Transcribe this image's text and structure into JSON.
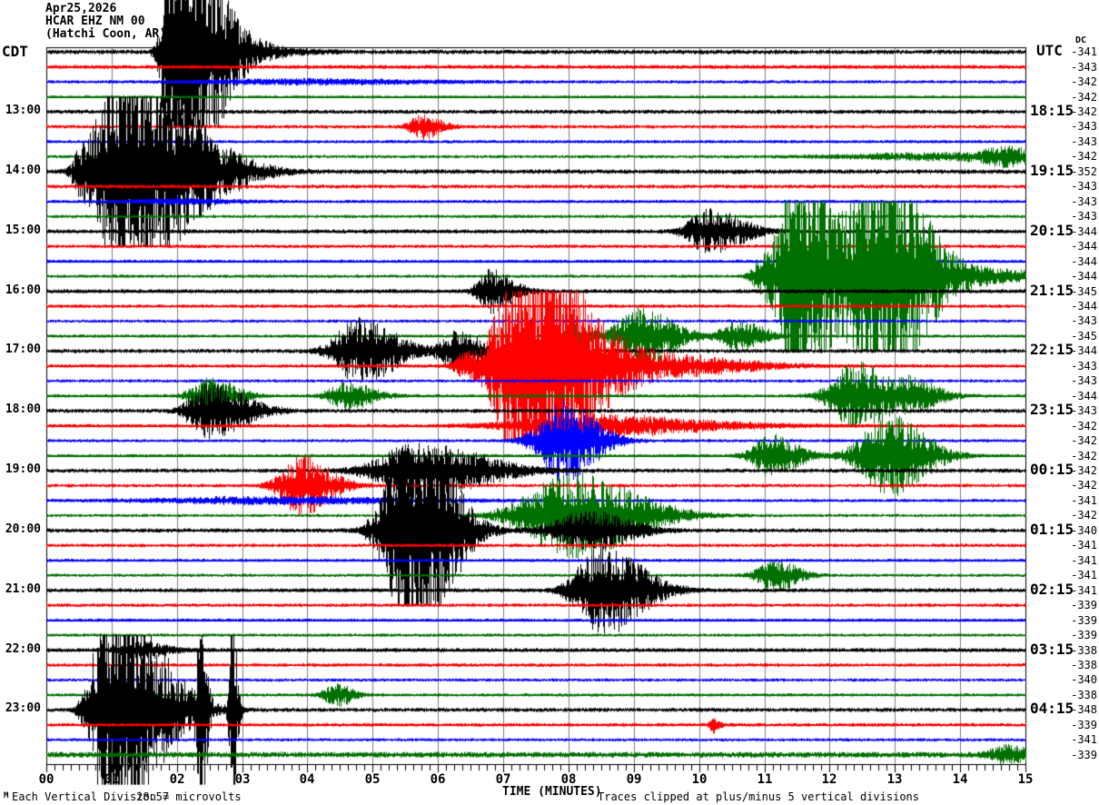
{
  "title": {
    "date": "Apr25,2026",
    "station": "HCAR EHZ NM 00",
    "location": "(Hatchi Coon, AR)"
  },
  "left_axis": {
    "header": "CDT",
    "labels": [
      "13:00",
      "14:00",
      "15:00",
      "16:00",
      "17:00",
      "18:00",
      "19:00",
      "20:00",
      "21:00",
      "22:00",
      "23:00"
    ]
  },
  "right_axis": {
    "header": "UTC",
    "labels": [
      "18:15",
      "19:15",
      "20:15",
      "21:15",
      "22:15",
      "23:15",
      "00:15",
      "01:15",
      "02:15",
      "03:15",
      "04:15"
    ]
  },
  "dc_column": {
    "header": "DC",
    "values": [
      -341,
      -343,
      -342,
      -342,
      -342,
      -343,
      -343,
      -342,
      -352,
      -343,
      -343,
      -343,
      -344,
      -344,
      -344,
      -344,
      -345,
      -344,
      -343,
      -345,
      -344,
      -343,
      -343,
      -344,
      -343,
      -342,
      -342,
      -342,
      -342,
      -342,
      -341,
      -342,
      -340,
      -341,
      -341,
      -341,
      -341,
      -339,
      -339,
      -339,
      -338,
      -338,
      -340,
      -338,
      -348,
      -339,
      -341,
      -339
    ]
  },
  "x_axis": {
    "label": "TIME (MINUTES)",
    "ticks": [
      "00",
      "01",
      "02",
      "03",
      "04",
      "05",
      "06",
      "07",
      "08",
      "09",
      "10",
      "11",
      "12",
      "13",
      "14",
      "15"
    ]
  },
  "footer": {
    "scale_label": "Each Vertical Division =",
    "scale_value": "28.57 microvolts",
    "clip_note": "Traces clipped at plus/minus 5 vertical divisions",
    "watermark": "M"
  },
  "colors": {
    "background": "#ffffff",
    "frame": "#000000",
    "grid": "#808080",
    "trace_colors": {
      "black": "#000000",
      "red": "#ff0000",
      "blue": "#0000ff",
      "green": "#007000"
    }
  },
  "chart_data": {
    "type": "line",
    "subtype": "helicorder-seismogram",
    "minutes_per_row": 15,
    "rows_total": 48,
    "first_row_start_cdt": "12:00",
    "clip_divisions": 5,
    "microvolts_per_division": 28.57,
    "x_range_minutes": [
      0,
      15
    ],
    "rows": [
      {
        "cdt": "12:00",
        "color": "black",
        "dc": -341,
        "noise": 2.5,
        "events": [
          {
            "t": 1.95,
            "wl": 0.12,
            "wr": 0.5,
            "a": 200
          },
          {
            "t": 2.75,
            "wl": 0.3,
            "wr": 0.7,
            "a": 10
          }
        ]
      },
      {
        "cdt": "12:15",
        "color": "red",
        "dc": -343,
        "noise": 2.2,
        "events": []
      },
      {
        "cdt": "12:30",
        "color": "blue",
        "dc": -342,
        "noise": 1.8,
        "events": [
          {
            "t": 4.0,
            "wl": 1.2,
            "wr": 1.5,
            "a": 3
          }
        ]
      },
      {
        "cdt": "12:45",
        "color": "green",
        "dc": -342,
        "noise": 1.5,
        "events": []
      },
      {
        "cdt": "13:00",
        "color": "black",
        "dc": -342,
        "noise": 2.3,
        "events": []
      },
      {
        "cdt": "13:15",
        "color": "red",
        "dc": -343,
        "noise": 2.0,
        "events": [
          {
            "t": 5.75,
            "wl": 0.15,
            "wr": 0.25,
            "a": 13
          }
        ]
      },
      {
        "cdt": "13:30",
        "color": "blue",
        "dc": -343,
        "noise": 1.8,
        "events": []
      },
      {
        "cdt": "13:45",
        "color": "green",
        "dc": -342,
        "noise": 1.8,
        "events": [
          {
            "t": 13.8,
            "wl": 1.2,
            "wr": 1.0,
            "a": 4
          },
          {
            "t": 14.75,
            "wl": 0.3,
            "wr": 0.3,
            "a": 9
          }
        ]
      },
      {
        "cdt": "14:00",
        "color": "black",
        "dc": -352,
        "noise": 2.5,
        "events": [
          {
            "t": 0.55,
            "wl": 0.12,
            "wr": 0.15,
            "a": 25
          },
          {
            "t": 1.05,
            "wl": 0.22,
            "wr": 0.9,
            "a": 120
          },
          {
            "t": 2.1,
            "wl": 0.3,
            "wr": 0.7,
            "a": 15
          }
        ]
      },
      {
        "cdt": "14:15",
        "color": "red",
        "dc": -343,
        "noise": 2.2,
        "events": []
      },
      {
        "cdt": "14:30",
        "color": "blue",
        "dc": -343,
        "noise": 1.8,
        "events": [
          {
            "t": 2.0,
            "wl": 0.5,
            "wr": 0.7,
            "a": 3
          }
        ]
      },
      {
        "cdt": "14:45",
        "color": "green",
        "dc": -343,
        "noise": 1.8,
        "events": []
      },
      {
        "cdt": "15:00",
        "color": "black",
        "dc": -344,
        "noise": 2.3,
        "events": [
          {
            "t": 10.15,
            "wl": 0.25,
            "wr": 0.45,
            "a": 24
          }
        ]
      },
      {
        "cdt": "15:15",
        "color": "red",
        "dc": -344,
        "noise": 2.0,
        "events": []
      },
      {
        "cdt": "15:30",
        "color": "blue",
        "dc": -344,
        "noise": 1.8,
        "events": []
      },
      {
        "cdt": "15:45",
        "color": "green",
        "dc": -344,
        "noise": 1.8,
        "events": [
          {
            "t": 10.95,
            "wl": 0.12,
            "wr": 0.12,
            "a": 14
          },
          {
            "t": 11.55,
            "wl": 0.25,
            "wr": 0.35,
            "a": 150
          },
          {
            "t": 12.75,
            "wl": 0.35,
            "wr": 0.55,
            "a": 150
          },
          {
            "t": 14.0,
            "wl": 0.9,
            "wr": 1.1,
            "a": 9
          }
        ]
      },
      {
        "cdt": "16:00",
        "color": "black",
        "dc": -345,
        "noise": 2.3,
        "events": [
          {
            "t": 6.8,
            "wl": 0.15,
            "wr": 0.3,
            "a": 24
          }
        ]
      },
      {
        "cdt": "16:15",
        "color": "red",
        "dc": -344,
        "noise": 2.0,
        "events": []
      },
      {
        "cdt": "16:30",
        "color": "blue",
        "dc": -343,
        "noise": 1.8,
        "events": []
      },
      {
        "cdt": "16:45",
        "color": "green",
        "dc": -345,
        "noise": 1.8,
        "events": [
          {
            "t": 8.1,
            "wl": 0.12,
            "wr": 0.18,
            "a": 13
          },
          {
            "t": 9.1,
            "wl": 0.3,
            "wr": 0.45,
            "a": 32
          },
          {
            "t": 10.6,
            "wl": 0.2,
            "wr": 0.35,
            "a": 16
          }
        ]
      },
      {
        "cdt": "17:00",
        "color": "black",
        "dc": -344,
        "noise": 2.3,
        "events": [
          {
            "t": 4.8,
            "wl": 0.3,
            "wr": 0.5,
            "a": 36
          },
          {
            "t": 6.3,
            "wl": 0.2,
            "wr": 0.3,
            "a": 22
          },
          {
            "t": 7.2,
            "wl": 0.15,
            "wr": 0.25,
            "a": 10
          }
        ]
      },
      {
        "cdt": "17:15",
        "color": "red",
        "dc": -343,
        "noise": 2.0,
        "events": [
          {
            "t": 6.4,
            "wl": 0.12,
            "wr": 0.15,
            "a": 12
          },
          {
            "t": 7.35,
            "wl": 0.35,
            "wr": 0.8,
            "a": 150
          },
          {
            "t": 9.6,
            "wl": 0.7,
            "wr": 1.0,
            "a": 11
          }
        ]
      },
      {
        "cdt": "17:30",
        "color": "blue",
        "dc": -343,
        "noise": 1.8,
        "events": []
      },
      {
        "cdt": "17:45",
        "color": "green",
        "dc": -344,
        "noise": 1.8,
        "events": [
          {
            "t": 2.5,
            "wl": 0.22,
            "wr": 0.35,
            "a": 20
          },
          {
            "t": 4.6,
            "wl": 0.22,
            "wr": 0.35,
            "a": 15
          },
          {
            "t": 12.4,
            "wl": 0.3,
            "wr": 0.45,
            "a": 38
          },
          {
            "t": 13.3,
            "wl": 0.2,
            "wr": 0.35,
            "a": 16
          }
        ]
      },
      {
        "cdt": "18:00",
        "color": "black",
        "dc": -343,
        "noise": 2.3,
        "events": [
          {
            "t": 2.5,
            "wl": 0.25,
            "wr": 0.5,
            "a": 30
          }
        ]
      },
      {
        "cdt": "18:15",
        "color": "red",
        "dc": -342,
        "noise": 2.0,
        "events": [
          {
            "t": 8.3,
            "wl": 0.9,
            "wr": 1.5,
            "a": 12
          }
        ]
      },
      {
        "cdt": "18:30",
        "color": "blue",
        "dc": -342,
        "noise": 1.8,
        "events": [
          {
            "t": 7.9,
            "wl": 0.3,
            "wr": 0.45,
            "a": 45
          }
        ]
      },
      {
        "cdt": "18:45",
        "color": "green",
        "dc": -342,
        "noise": 1.8,
        "events": [
          {
            "t": 11.1,
            "wl": 0.22,
            "wr": 0.35,
            "a": 24
          },
          {
            "t": 12.9,
            "wl": 0.35,
            "wr": 0.5,
            "a": 45
          }
        ]
      },
      {
        "cdt": "19:00",
        "color": "black",
        "dc": -342,
        "noise": 2.3,
        "events": [
          {
            "t": 5.7,
            "wl": 0.5,
            "wr": 0.9,
            "a": 30
          }
        ]
      },
      {
        "cdt": "19:15",
        "color": "red",
        "dc": -342,
        "noise": 2.0,
        "events": [
          {
            "t": 3.9,
            "wl": 0.25,
            "wr": 0.4,
            "a": 33
          }
        ]
      },
      {
        "cdt": "19:30",
        "color": "blue",
        "dc": -341,
        "noise": 1.8,
        "events": [
          {
            "t": 3.5,
            "wl": 1.4,
            "wr": 1.8,
            "a": 4
          }
        ]
      },
      {
        "cdt": "19:45",
        "color": "green",
        "dc": -342,
        "noise": 1.8,
        "events": [
          {
            "t": 8.0,
            "wl": 0.55,
            "wr": 0.9,
            "a": 48
          }
        ]
      },
      {
        "cdt": "20:00",
        "color": "black",
        "dc": -340,
        "noise": 2.3,
        "events": [
          {
            "t": 5.6,
            "wl": 0.3,
            "wr": 0.5,
            "a": 140
          },
          {
            "t": 8.3,
            "wl": 0.4,
            "wr": 0.55,
            "a": 22
          }
        ]
      },
      {
        "cdt": "20:15",
        "color": "red",
        "dc": -341,
        "noise": 2.0,
        "events": []
      },
      {
        "cdt": "20:30",
        "color": "blue",
        "dc": -341,
        "noise": 1.8,
        "events": []
      },
      {
        "cdt": "20:45",
        "color": "green",
        "dc": -341,
        "noise": 1.8,
        "events": [
          {
            "t": 11.15,
            "wl": 0.2,
            "wr": 0.3,
            "a": 18
          }
        ]
      },
      {
        "cdt": "21:00",
        "color": "black",
        "dc": -341,
        "noise": 2.3,
        "events": [
          {
            "t": 8.5,
            "wl": 0.3,
            "wr": 0.55,
            "a": 50
          }
        ]
      },
      {
        "cdt": "21:15",
        "color": "red",
        "dc": -339,
        "noise": 2.0,
        "events": []
      },
      {
        "cdt": "21:30",
        "color": "blue",
        "dc": -339,
        "noise": 1.8,
        "events": []
      },
      {
        "cdt": "21:45",
        "color": "green",
        "dc": -339,
        "noise": 1.8,
        "events": []
      },
      {
        "cdt": "22:00",
        "color": "black",
        "dc": -338,
        "noise": 2.3,
        "events": [
          {
            "t": 1.45,
            "wl": 0.25,
            "wr": 0.35,
            "a": 9
          }
        ]
      },
      {
        "cdt": "22:15",
        "color": "red",
        "dc": -338,
        "noise": 2.0,
        "events": []
      },
      {
        "cdt": "22:30",
        "color": "blue",
        "dc": -340,
        "noise": 1.8,
        "events": []
      },
      {
        "cdt": "22:45",
        "color": "green",
        "dc": -338,
        "noise": 1.8,
        "events": [
          {
            "t": 4.45,
            "wl": 0.15,
            "wr": 0.2,
            "a": 13
          }
        ]
      },
      {
        "cdt": "23:00",
        "color": "black",
        "dc": -348,
        "noise": 2.3,
        "events": [
          {
            "t": 0.95,
            "wl": 0.2,
            "wr": 0.55,
            "a": 130
          },
          {
            "t": 1.7,
            "wl": 0.3,
            "wr": 0.5,
            "a": 24
          },
          {
            "t": 2.37,
            "wl": 0.05,
            "wr": 0.07,
            "a": 120
          },
          {
            "t": 2.85,
            "wl": 0.04,
            "wr": 0.06,
            "a": 120
          }
        ]
      },
      {
        "cdt": "23:15",
        "color": "red",
        "dc": -339,
        "noise": 2.0,
        "events": [
          {
            "t": 10.2,
            "wl": 0.04,
            "wr": 0.08,
            "a": 9
          }
        ]
      },
      {
        "cdt": "23:30",
        "color": "blue",
        "dc": -341,
        "noise": 1.8,
        "events": []
      },
      {
        "cdt": "23:45",
        "color": "green",
        "dc": -339,
        "noise": 3.2,
        "events": [
          {
            "t": 14.75,
            "wl": 0.2,
            "wr": 0.25,
            "a": 11
          }
        ]
      }
    ]
  }
}
